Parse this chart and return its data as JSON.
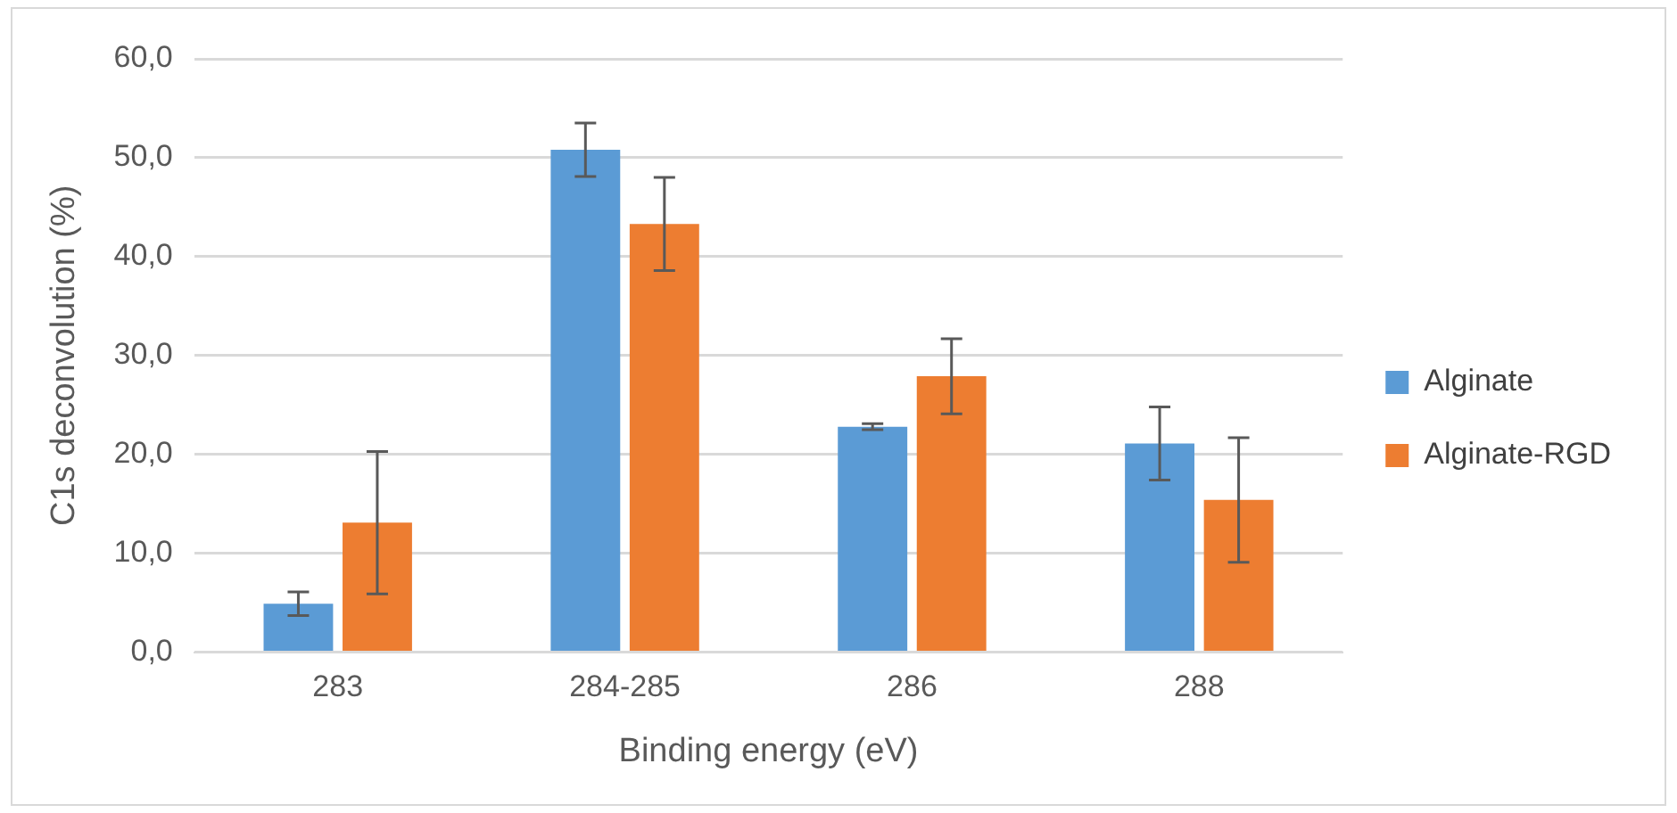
{
  "chart_data": {
    "type": "bar",
    "xlabel": "Binding energy (eV)",
    "ylabel": "C1s deconvolution (%)",
    "categories": [
      "283",
      "284-285",
      "286",
      "288"
    ],
    "series": [
      {
        "name": "Alginate",
        "color": "#5b9bd5",
        "values": [
          4.9,
          50.8,
          22.8,
          21.1
        ],
        "errors": [
          1.2,
          2.7,
          0.3,
          3.7
        ]
      },
      {
        "name": "Alginate-RGD",
        "color": "#ed7d31",
        "values": [
          13.1,
          43.3,
          27.9,
          15.4
        ],
        "errors": [
          7.2,
          4.7,
          3.8,
          6.3
        ]
      }
    ],
    "ylim": [
      0,
      60
    ],
    "yticks": [
      {
        "value": 0,
        "label": "0,0"
      },
      {
        "value": 10,
        "label": "10,0"
      },
      {
        "value": 20,
        "label": "20,0"
      },
      {
        "value": 30,
        "label": "30,0"
      },
      {
        "value": 40,
        "label": "40,0"
      },
      {
        "value": 50,
        "label": "50,0"
      },
      {
        "value": 60,
        "label": "60,0"
      }
    ],
    "grid": "y",
    "legend": "right"
  }
}
